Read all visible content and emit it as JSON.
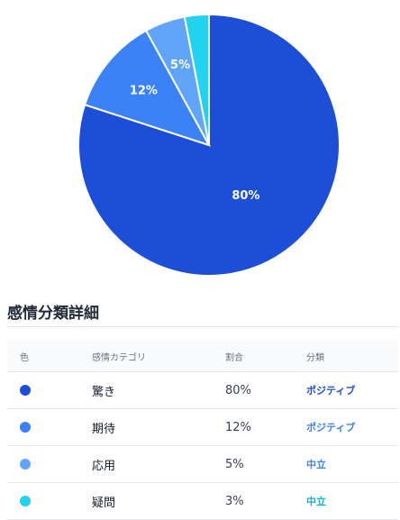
{
  "colors": {
    "surprise": "#1d4ed8",
    "anticipation": "#3b82f6",
    "applied": "#60a5fa",
    "doubt": "#22d3ee",
    "positive_text": "#1d4ed8",
    "neutral_text": "#06b6d4"
  },
  "chart_data": {
    "type": "pie",
    "categories": [
      "驚き",
      "期待",
      "応用",
      "疑問"
    ],
    "values": [
      80,
      12,
      5,
      3
    ],
    "labels": [
      "80%",
      "12%",
      "5%",
      ""
    ],
    "colors": [
      "#1d4ed8",
      "#3b82f6",
      "#60a5fa",
      "#22d3ee"
    ]
  },
  "section": {
    "title": "感情分類詳細"
  },
  "table": {
    "headers": {
      "color": "色",
      "category": "感情カテゴリ",
      "ratio": "割合",
      "classification": "分類"
    },
    "rows": [
      {
        "color": "#1d4ed8",
        "category": "驚き",
        "ratio": "80%",
        "classification": "ポジティブ",
        "class_color": "#1d4ed8"
      },
      {
        "color": "#3b82f6",
        "category": "期待",
        "ratio": "12%",
        "classification": "ポジティブ",
        "class_color": "#3b82f6"
      },
      {
        "color": "#60a5fa",
        "category": "応用",
        "ratio": "5%",
        "classification": "中立",
        "class_color": "#3b82f6"
      },
      {
        "color": "#22d3ee",
        "category": "疑問",
        "ratio": "3%",
        "classification": "中立",
        "class_color": "#06b6d4"
      }
    ]
  }
}
